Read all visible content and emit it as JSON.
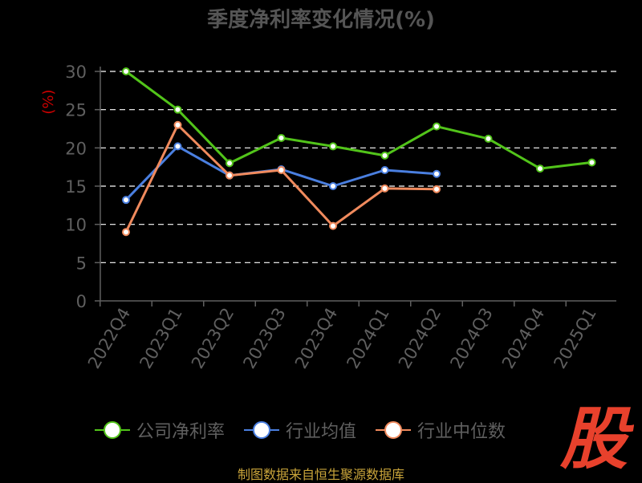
{
  "chart_data": {
    "type": "line",
    "title": "季度净利率变化情况(%)",
    "ylabel": "(%)",
    "categories": [
      "2022Q4",
      "2023Q1",
      "2023Q2",
      "2023Q3",
      "2023Q4",
      "2024Q1",
      "2024Q2",
      "2024Q3",
      "2024Q4",
      "2025Q1"
    ],
    "ylim": [
      0,
      30
    ],
    "yticks": [
      0,
      5,
      10,
      15,
      20,
      25,
      30
    ],
    "grid": true,
    "legend_position": "bottom",
    "series": [
      {
        "name": "公司净利率",
        "color": "#52c41a",
        "values": [
          30.0,
          25.0,
          18.0,
          21.3,
          20.2,
          19.0,
          22.8,
          21.2,
          17.3,
          18.1
        ]
      },
      {
        "name": "行业均值",
        "color": "#4a7fe0",
        "values": [
          13.2,
          20.2,
          16.4,
          17.2,
          15.0,
          17.1,
          16.6,
          null,
          null,
          null
        ]
      },
      {
        "name": "行业中位数",
        "color": "#f08a5d",
        "values": [
          9.0,
          23.0,
          16.4,
          17.1,
          9.8,
          14.7,
          14.6,
          null,
          null,
          null
        ]
      }
    ]
  },
  "source_text": "制图数据来自恒生聚源数据库",
  "logo_text": "股",
  "colors": {
    "background": "#000000",
    "axis": "#5f5f5f",
    "grid": "#ffffff",
    "ylabel": "#cc0000",
    "title": "#555555",
    "logo": "#e8412c"
  }
}
